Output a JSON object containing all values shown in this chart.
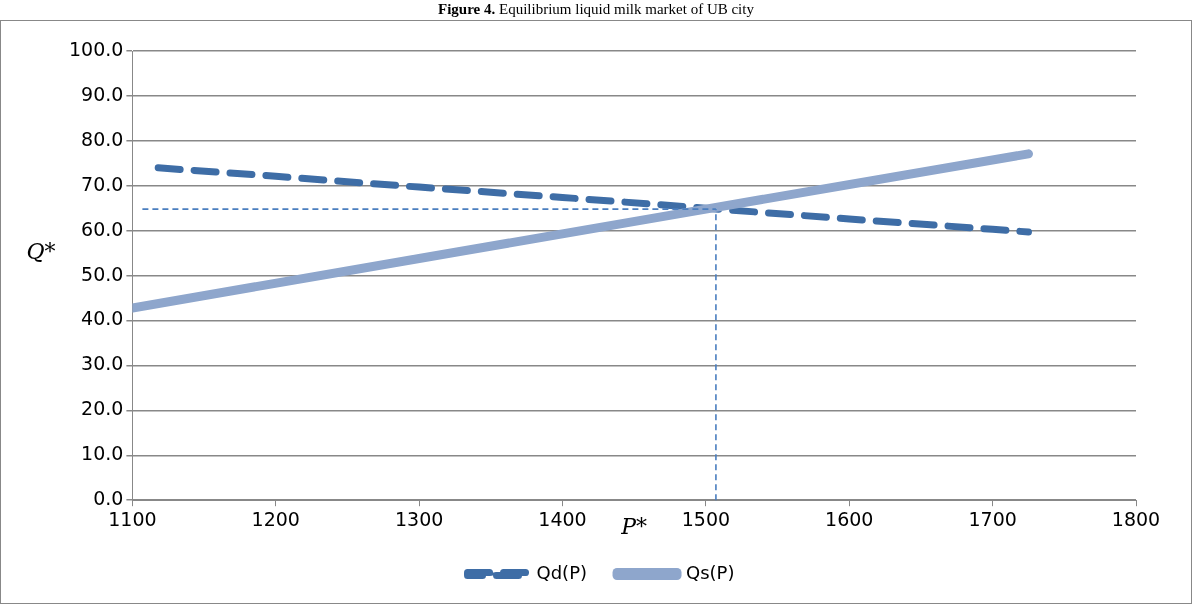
{
  "chart_data": {
    "type": "line",
    "title": "Figure 4. Equilibrium liquid milk market of UB city",
    "xlabel": "P*",
    "ylabel": "Q*",
    "series": [
      {
        "name": "Qd(P)",
        "color": "#3e6da6",
        "line_style": "dashed",
        "x": [
          1118,
          1200,
          1300,
          1400,
          1500,
          1600,
          1700,
          1725
        ],
        "values": [
          74.0,
          72.1,
          69.7,
          67.4,
          65.0,
          62.6,
          60.3,
          59.7
        ]
      },
      {
        "name": "Qs(P)",
        "color": "#8ea6cc",
        "line_style": "solid",
        "x": [
          1100,
          1300,
          1500,
          1725
        ],
        "values": [
          42.8,
          53.8,
          64.8,
          77.1
        ]
      }
    ],
    "xlim": [
      1100,
      1800
    ],
    "xticks": [
      1100,
      1200,
      1300,
      1400,
      1500,
      1600,
      1700,
      1800
    ],
    "ylim": [
      0,
      100
    ],
    "yticks": [
      {
        "value": 0,
        "label": "0.0"
      },
      {
        "value": 10,
        "label": "10.0"
      },
      {
        "value": 20,
        "label": "20.0"
      },
      {
        "value": 30,
        "label": "30.0"
      },
      {
        "value": 40,
        "label": "40.0"
      },
      {
        "value": 50,
        "label": "50.0"
      },
      {
        "value": 60,
        "label": "60.0"
      },
      {
        "value": 70,
        "label": "70.0"
      },
      {
        "value": 80,
        "label": "80.0"
      },
      {
        "value": 90,
        "label": "90.0"
      },
      {
        "value": 100,
        "label": "100.0"
      }
    ],
    "ref_lines": [
      {
        "axis": "x",
        "value": 1507,
        "color": "#4a7ebf",
        "line_style": "dashed"
      },
      {
        "axis": "y",
        "value": 64.8,
        "color": "#4a7ebf",
        "line_style": "dashed"
      }
    ],
    "grid": "y",
    "legend": "bottom",
    "marker": "none"
  }
}
